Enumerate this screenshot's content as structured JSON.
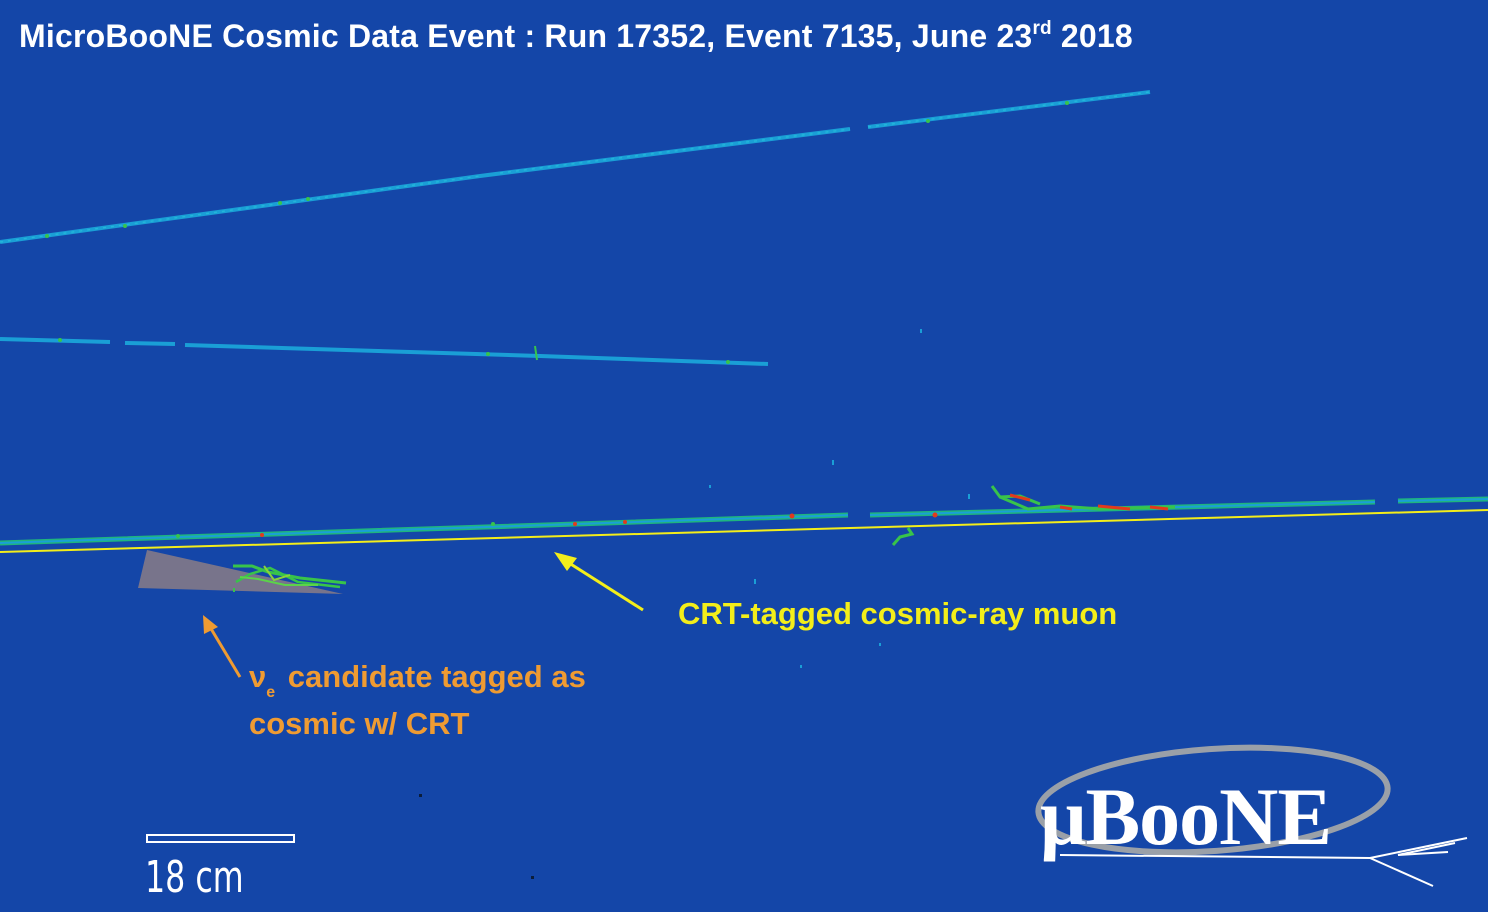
{
  "title": {
    "main": "MicroBooNE Cosmic Data Event : Run 17352, Event 7135, June 23",
    "superscript": "rd",
    "suffix": " 2018"
  },
  "labels": {
    "muon": "CRT-tagged cosmic-ray muon",
    "nue_symbol": "ν",
    "nue_subscript": "e",
    "nue_line1": "candidate tagged as",
    "nue_line2": "cosmic w/ CRT"
  },
  "scale_bar": {
    "label": "18 cm"
  },
  "logo": {
    "text": "μBooNE"
  },
  "colors": {
    "background": "#1446a8",
    "track_cyan": "#1aa6d8",
    "track_green": "#34c94a",
    "hit_red": "#e23a1c",
    "muon_highlight": "#f3ee1a",
    "nue_annotation": "#ef9b32",
    "nue_cone": "#8a7c86",
    "logo_ring": "#9aa0a8"
  }
}
